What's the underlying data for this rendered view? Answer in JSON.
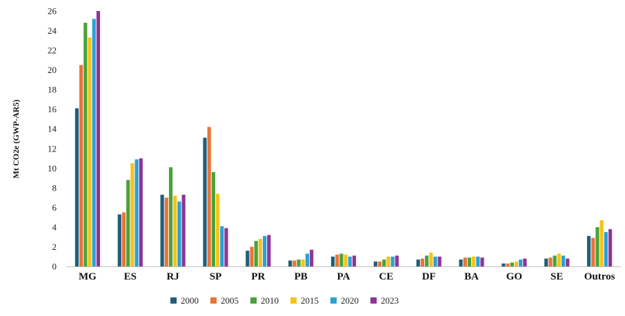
{
  "chart_data": {
    "type": "bar",
    "title": "",
    "xlabel": "",
    "ylabel": "Mt CO2e (GWP-AR5)",
    "ylim": [
      0,
      26
    ],
    "yticks": [
      0,
      2,
      4,
      6,
      8,
      10,
      12,
      14,
      16,
      18,
      20,
      22,
      24,
      26
    ],
    "grid": false,
    "legend_position": "bottom",
    "categories": [
      "MG",
      "ES",
      "RJ",
      "SP",
      "PR",
      "PB",
      "PA",
      "CE",
      "DF",
      "BA",
      "GO",
      "SE",
      "Outros"
    ],
    "series": [
      {
        "name": "2000",
        "color": "#1f5f7a",
        "values": [
          16.1,
          5.3,
          7.3,
          13.1,
          1.6,
          0.6,
          1.0,
          0.5,
          0.7,
          0.7,
          0.3,
          0.8,
          3.1
        ]
      },
      {
        "name": "2005",
        "color": "#e97436",
        "values": [
          20.5,
          5.5,
          7.0,
          14.2,
          2.0,
          0.6,
          1.2,
          0.5,
          0.8,
          0.9,
          0.3,
          0.9,
          2.9
        ]
      },
      {
        "name": "2010",
        "color": "#4aa23a",
        "values": [
          24.8,
          8.8,
          10.1,
          9.6,
          2.6,
          0.7,
          1.3,
          0.7,
          1.1,
          0.9,
          0.4,
          1.1,
          4.0
        ]
      },
      {
        "name": "2015",
        "color": "#f7c31a",
        "values": [
          23.3,
          10.5,
          7.2,
          7.4,
          2.8,
          0.7,
          1.2,
          1.0,
          1.4,
          1.0,
          0.5,
          1.3,
          4.7
        ]
      },
      {
        "name": "2020",
        "color": "#2aa1d6",
        "values": [
          25.2,
          10.9,
          6.6,
          4.1,
          3.1,
          1.3,
          1.0,
          1.0,
          1.0,
          1.0,
          0.7,
          1.1,
          3.5
        ]
      },
      {
        "name": "2023",
        "color": "#8e3697",
        "values": [
          26.0,
          11.0,
          7.3,
          3.9,
          3.2,
          1.7,
          1.1,
          1.1,
          1.0,
          0.9,
          0.8,
          0.8,
          3.8
        ]
      }
    ]
  }
}
